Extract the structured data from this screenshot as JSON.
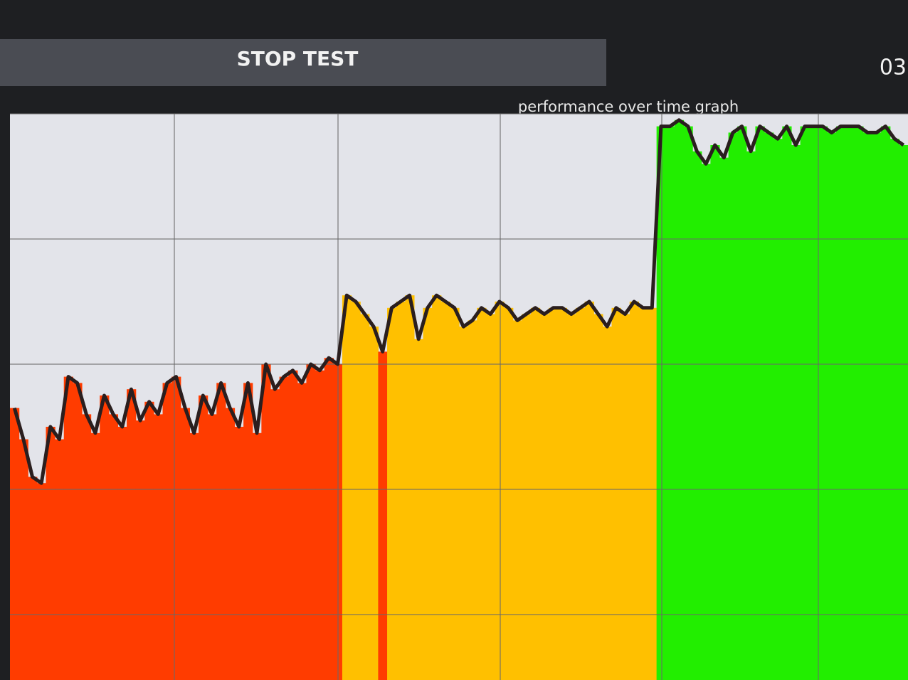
{
  "toolbar": {
    "button": "STOP TEST",
    "timer": "03"
  },
  "chart_data": {
    "type": "bar",
    "title": "performance over time graph",
    "values": [
      53,
      48,
      42,
      41,
      50,
      48,
      58,
      57,
      52,
      49,
      55,
      52,
      50,
      56,
      51,
      54,
      52,
      57,
      58,
      53,
      49,
      55,
      52,
      57,
      53,
      50,
      57,
      49,
      60,
      56,
      58,
      59,
      57,
      60,
      59,
      61,
      60,
      71,
      70,
      68,
      66,
      62,
      69,
      70,
      71,
      64,
      69,
      71,
      70,
      69,
      66,
      67,
      69,
      68,
      70,
      69,
      67,
      68,
      69,
      68,
      69,
      69,
      68,
      69,
      70,
      68,
      66,
      69,
      68,
      70,
      69,
      69,
      98,
      98,
      99,
      98,
      94,
      92,
      95,
      93,
      97,
      98,
      94,
      98,
      97,
      96,
      98,
      95,
      98,
      98,
      98,
      97,
      98,
      98,
      98,
      97,
      97,
      98,
      96,
      95
    ],
    "color_thresholds": [
      {
        "max": 62,
        "color": "#ff3c00"
      },
      {
        "max": 85,
        "color": "#ffc000"
      },
      {
        "max": 100,
        "color": "#22ee00"
      }
    ],
    "line_color": "#2a1e1e",
    "ylim": [
      10,
      100
    ],
    "yticks": [
      20,
      40,
      60,
      80,
      100
    ],
    "grid": true
  }
}
